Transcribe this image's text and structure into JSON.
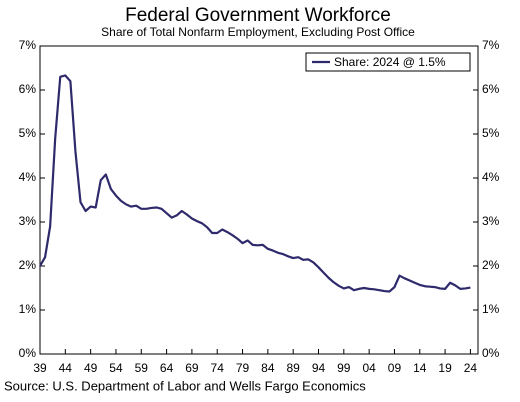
{
  "chart_data": {
    "type": "line",
    "title": "Federal Government Workforce",
    "subtitle": "Share of Total Nonfarm Employment, Excluding Post Office",
    "source": "Source: U.S. Department of Labor and Wells Fargo Economics",
    "x": [
      1939,
      1940,
      1941,
      1942,
      1943,
      1944,
      1945,
      1946,
      1947,
      1948,
      1949,
      1950,
      1951,
      1952,
      1953,
      1954,
      1955,
      1956,
      1957,
      1958,
      1959,
      1960,
      1961,
      1962,
      1963,
      1964,
      1965,
      1966,
      1967,
      1968,
      1969,
      1970,
      1971,
      1972,
      1973,
      1974,
      1975,
      1976,
      1977,
      1978,
      1979,
      1980,
      1981,
      1982,
      1983,
      1984,
      1985,
      1986,
      1987,
      1988,
      1989,
      1990,
      1991,
      1992,
      1993,
      1994,
      1995,
      1996,
      1997,
      1998,
      1999,
      2000,
      2001,
      2002,
      2003,
      2004,
      2005,
      2006,
      2007,
      2008,
      2009,
      2010,
      2011,
      2012,
      2013,
      2014,
      2015,
      2016,
      2017,
      2018,
      2019,
      2020,
      2021,
      2022,
      2023,
      2024
    ],
    "series": [
      {
        "name": "Share: 2024 @ 1.5%",
        "color": "#2e2a6b",
        "values": [
          2.0,
          2.2,
          2.9,
          4.9,
          6.3,
          6.33,
          6.2,
          4.6,
          3.45,
          3.25,
          3.35,
          3.33,
          3.95,
          4.08,
          3.75,
          3.6,
          3.48,
          3.4,
          3.35,
          3.37,
          3.3,
          3.3,
          3.32,
          3.33,
          3.3,
          3.2,
          3.1,
          3.15,
          3.25,
          3.17,
          3.08,
          3.02,
          2.97,
          2.88,
          2.75,
          2.75,
          2.83,
          2.77,
          2.7,
          2.62,
          2.52,
          2.58,
          2.48,
          2.47,
          2.48,
          2.39,
          2.35,
          2.3,
          2.27,
          2.22,
          2.18,
          2.2,
          2.14,
          2.15,
          2.08,
          1.97,
          1.85,
          1.73,
          1.63,
          1.55,
          1.49,
          1.52,
          1.45,
          1.48,
          1.5,
          1.48,
          1.47,
          1.45,
          1.43,
          1.42,
          1.52,
          1.78,
          1.72,
          1.67,
          1.62,
          1.57,
          1.54,
          1.53,
          1.52,
          1.49,
          1.48,
          1.62,
          1.56,
          1.48,
          1.49,
          1.51
        ]
      }
    ],
    "xlim": [
      1939,
      2025.5
    ],
    "xticks": [
      {
        "value": 1939,
        "label": "39"
      },
      {
        "value": 1944,
        "label": "44"
      },
      {
        "value": 1949,
        "label": "49"
      },
      {
        "value": 1954,
        "label": "54"
      },
      {
        "value": 1959,
        "label": "59"
      },
      {
        "value": 1964,
        "label": "64"
      },
      {
        "value": 1969,
        "label": "69"
      },
      {
        "value": 1974,
        "label": "74"
      },
      {
        "value": 1979,
        "label": "79"
      },
      {
        "value": 1984,
        "label": "84"
      },
      {
        "value": 1989,
        "label": "89"
      },
      {
        "value": 1994,
        "label": "94"
      },
      {
        "value": 1999,
        "label": "99"
      },
      {
        "value": 2004,
        "label": "04"
      },
      {
        "value": 2009,
        "label": "09"
      },
      {
        "value": 2014,
        "label": "14"
      },
      {
        "value": 2019,
        "label": "19"
      },
      {
        "value": 2024,
        "label": "24"
      }
    ],
    "ylim": [
      0,
      7
    ],
    "yticks": [
      {
        "value": 0,
        "label": "0%"
      },
      {
        "value": 1,
        "label": "1%"
      },
      {
        "value": 2,
        "label": "2%"
      },
      {
        "value": 3,
        "label": "3%"
      },
      {
        "value": 4,
        "label": "4%"
      },
      {
        "value": 5,
        "label": "5%"
      },
      {
        "value": 6,
        "label": "6%"
      },
      {
        "value": 7,
        "label": "7%"
      }
    ],
    "legend": "upper right"
  }
}
